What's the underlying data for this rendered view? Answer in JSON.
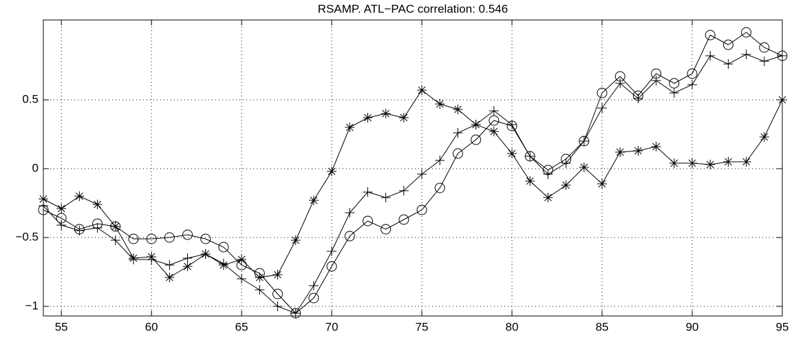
{
  "chart_data": {
    "type": "line",
    "title": "RSAMP. ATL−PAC correlation: 0.546",
    "x": [
      54,
      55,
      56,
      57,
      58,
      59,
      60,
      61,
      62,
      63,
      64,
      65,
      66,
      67,
      68,
      69,
      70,
      71,
      72,
      73,
      74,
      75,
      76,
      77,
      78,
      79,
      80,
      81,
      82,
      83,
      84,
      85,
      86,
      87,
      88,
      89,
      90,
      91,
      92,
      93,
      94,
      95
    ],
    "series": [
      {
        "color": "#000000",
        "marker": "circle",
        "values": [
          -0.3,
          -0.36,
          -0.44,
          -0.4,
          -0.42,
          -0.51,
          -0.51,
          -0.5,
          -0.48,
          -0.51,
          -0.57,
          -0.7,
          -0.76,
          -0.91,
          -1.05,
          -0.94,
          -0.71,
          -0.49,
          -0.38,
          -0.44,
          -0.37,
          -0.3,
          -0.14,
          0.11,
          0.21,
          0.35,
          0.31,
          0.09,
          -0.01,
          0.07,
          0.2,
          0.55,
          0.67,
          0.53,
          0.69,
          0.62,
          0.69,
          0.97,
          0.9,
          0.99,
          0.88,
          0.82
        ]
      },
      {
        "color": "#000000",
        "marker": "plus",
        "values": [
          -0.27,
          -0.41,
          -0.45,
          -0.43,
          -0.52,
          -0.66,
          -0.66,
          -0.7,
          -0.65,
          -0.62,
          -0.69,
          -0.8,
          -0.88,
          -1.0,
          -1.05,
          -0.85,
          -0.6,
          -0.32,
          -0.17,
          -0.21,
          -0.16,
          -0.04,
          0.06,
          0.26,
          0.32,
          0.42,
          0.32,
          0.09,
          -0.04,
          0.04,
          0.2,
          0.44,
          0.62,
          0.51,
          0.64,
          0.55,
          0.61,
          0.82,
          0.76,
          0.83,
          0.78,
          0.82
        ]
      },
      {
        "color": "#000000",
        "marker": "star",
        "values": [
          -0.22,
          -0.29,
          -0.2,
          -0.26,
          -0.42,
          -0.65,
          -0.64,
          -0.79,
          -0.71,
          -0.62,
          -0.7,
          -0.66,
          -0.79,
          -0.77,
          -0.52,
          -0.23,
          -0.02,
          0.3,
          0.37,
          0.4,
          0.37,
          0.57,
          0.47,
          0.43,
          0.32,
          0.27,
          0.11,
          -0.09,
          -0.21,
          -0.12,
          0.01,
          -0.11,
          0.12,
          0.13,
          0.16,
          0.04,
          0.04,
          0.03,
          0.05,
          0.05,
          0.23,
          0.5
        ]
      }
    ],
    "xlim": [
      54,
      95
    ],
    "ylim": [
      -1.07,
      1.08
    ],
    "xticks": [
      55,
      60,
      65,
      70,
      75,
      80,
      85,
      90,
      95
    ],
    "yticks": [
      {
        "value": -1,
        "label": "−1"
      },
      {
        "value": -0.5,
        "label": "−0.5"
      },
      0,
      0.5
    ],
    "grid": true
  }
}
